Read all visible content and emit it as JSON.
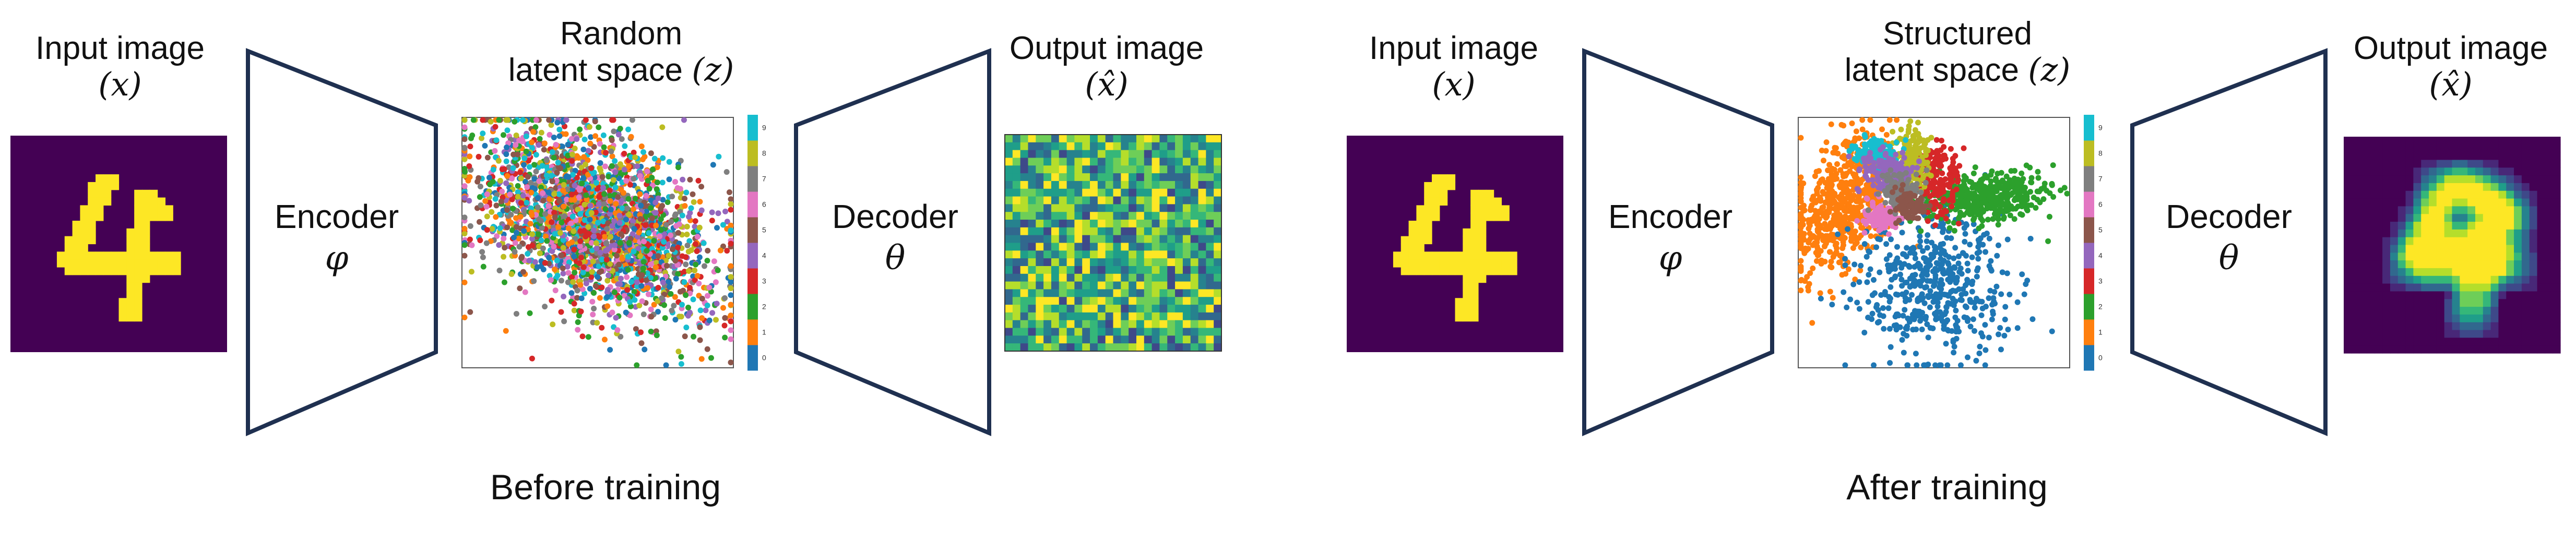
{
  "colors": {
    "outline": "#1f3050",
    "digit_bg": "#440154",
    "digit_fg": "#fde725",
    "tab10": [
      "#1f77b4",
      "#ff7f0e",
      "#2ca02c",
      "#d62728",
      "#9467bd",
      "#8c564b",
      "#e377c2",
      "#7f7f7f",
      "#bcbd22",
      "#17becf"
    ],
    "viridis": [
      "#440154",
      "#482878",
      "#3e4989",
      "#31688e",
      "#26828e",
      "#1f9e89",
      "#35b779",
      "#6ece58",
      "#b5de2b",
      "#fde725"
    ]
  },
  "icons": {
    "encoder": "trapezoid-narrowing",
    "decoder": "trapezoid-widening"
  },
  "left": {
    "input_label": "Input image",
    "input_var": "(x)",
    "encoder_label": "Encoder",
    "encoder_param": "φ",
    "latent_label_1": "Random",
    "latent_label_2": "latent space",
    "latent_var": "(z)",
    "decoder_label": "Decoder",
    "decoder_param": "θ",
    "output_label": "Output image",
    "output_var": "(x̂)",
    "caption": "Before training"
  },
  "right": {
    "input_label": "Input image",
    "input_var": "(x)",
    "encoder_label": "Encoder",
    "encoder_param": "φ",
    "latent_label_1": "Structured",
    "latent_label_2": "latent space",
    "latent_var": "(z)",
    "decoder_label": "Decoder",
    "decoder_param": "θ",
    "output_label": "Output image",
    "output_var": "(x̂)",
    "caption": "After training"
  },
  "colorbar_ticks": [
    "0",
    "1",
    "2",
    "3",
    "4",
    "5",
    "6",
    "7",
    "8",
    "9"
  ]
}
